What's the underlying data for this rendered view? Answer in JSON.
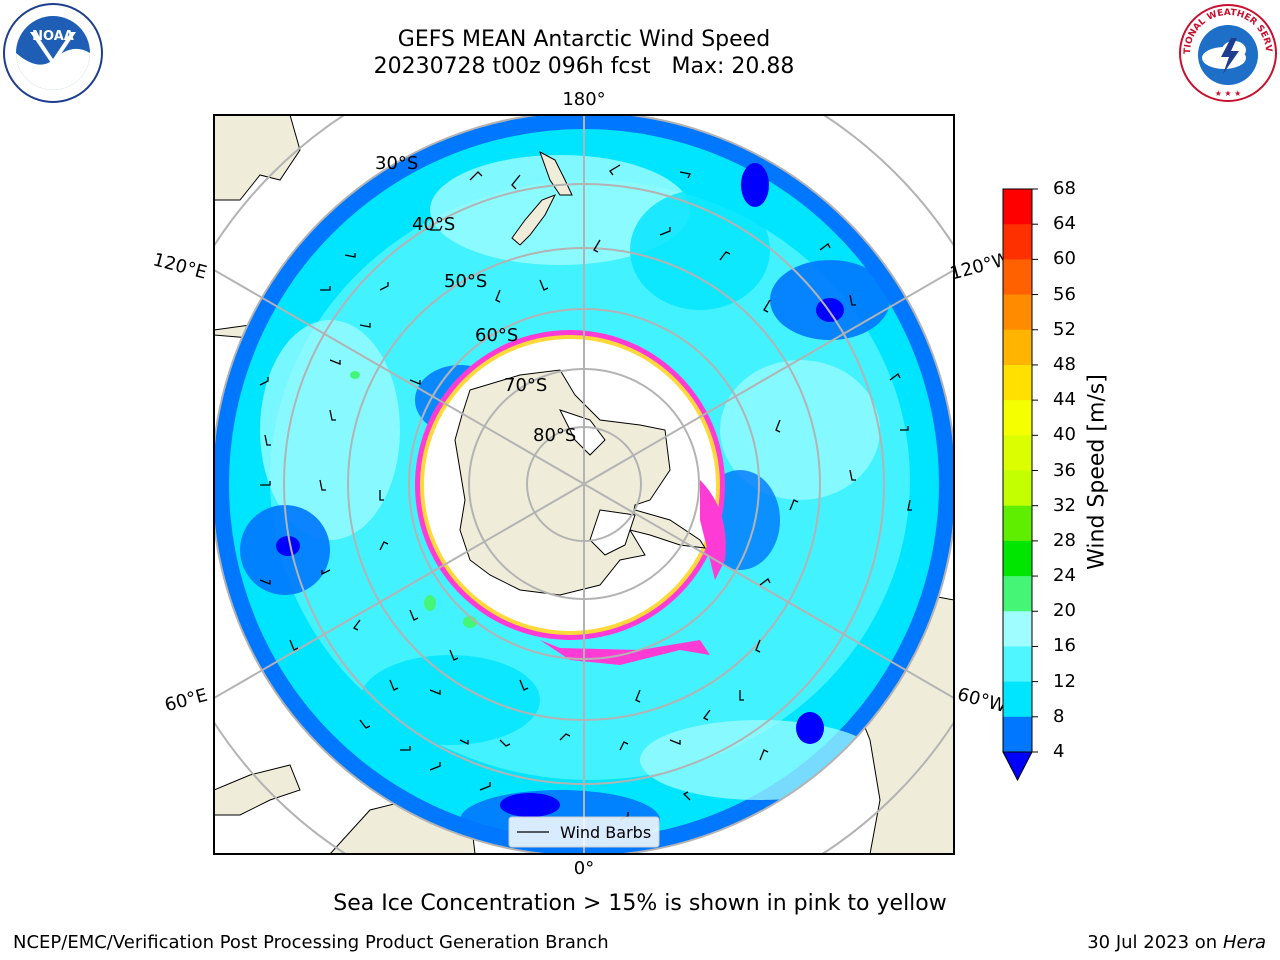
{
  "title": {
    "line1": "GEFS MEAN Antarctic Wind Speed",
    "line2": "20230728 t00z 096h fcst   Max: 20.88"
  },
  "map": {
    "projection": "south polar stereographic",
    "center": "South Pole",
    "longitude_labels": [
      "180°",
      "120°E",
      "120°W",
      "60°E",
      "60°W",
      "0°"
    ],
    "latitude_labels": [
      "30°S",
      "40°S",
      "50°S",
      "60°S",
      "70°S",
      "80°S"
    ],
    "legend": {
      "entry": "Wind Barbs"
    },
    "colors": {
      "land": "#efedd9",
      "ocean_4_8": "#0077ff",
      "ocean_8_12": "#00e5ff",
      "ocean_12_16": "#4ff5ff",
      "ocean_16_20": "#9ffcff",
      "sea_ice_low": "#ff3bd6",
      "sea_ice_high": "#ffd83a",
      "ice_shelf": "#ffffff",
      "grid": "#b3b3b3"
    }
  },
  "colorbar": {
    "label": "Wind Speed [m/s]",
    "ticks": [
      "68",
      "64",
      "60",
      "56",
      "52",
      "48",
      "44",
      "40",
      "36",
      "32",
      "28",
      "24",
      "20",
      "16",
      "12",
      "8",
      "4"
    ],
    "colors": [
      "#ff0000",
      "#ff3000",
      "#ff6000",
      "#ff8c00",
      "#ffb400",
      "#ffe000",
      "#f5ff00",
      "#dcff00",
      "#c3ff00",
      "#60ee00",
      "#00e600",
      "#45f575",
      "#9ffcff",
      "#4ff5ff",
      "#00e5ff",
      "#0077ff"
    ],
    "extend_color": "#0000ff"
  },
  "logos": {
    "left": "NOAA",
    "right": "NATIONAL WEATHER SERVICE"
  },
  "note": "Sea Ice Concentration > 15% is shown in pink to yellow",
  "footer": {
    "left": "NCEP/EMC/Verification Post Processing Product Generation Branch",
    "right_prefix": "30 Jul 2023 on ",
    "right_host": "Hera"
  }
}
